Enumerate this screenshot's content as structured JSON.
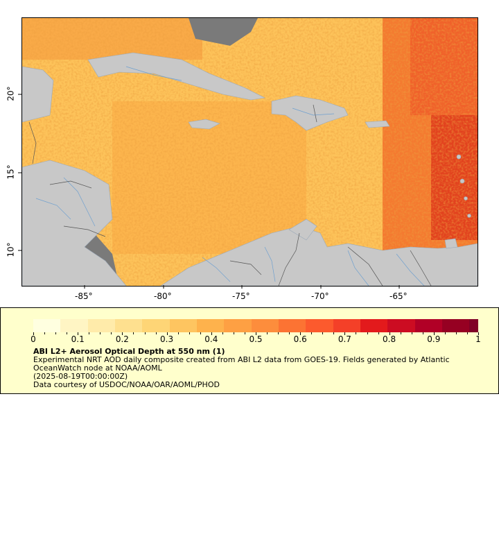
{
  "map": {
    "lon_ticks": [
      "-85°",
      "-80°",
      "-75°",
      "-70°",
      "-65°"
    ],
    "lat_ticks": [
      "20°",
      "15°",
      "10°"
    ],
    "colors": {
      "no_data": "#7a7a7a",
      "land": "#c8c8c8",
      "rivers": "#6fa0cf",
      "borders": "#555555"
    }
  },
  "legend": {
    "colorbar_colors": [
      "#ffffe0",
      "#fff5c4",
      "#ffebaa",
      "#fee08f",
      "#fed576",
      "#fec560",
      "#feb24c",
      "#fea043",
      "#fd8d3c",
      "#fc7333",
      "#fc5a2d",
      "#f44028",
      "#e31a1c",
      "#cc0c22",
      "#b10026",
      "#960022",
      "#800026"
    ],
    "tick_labels": [
      "0",
      "0.1",
      "0.2",
      "0.3",
      "0.4",
      "0.5",
      "0.6",
      "0.7",
      "0.8",
      "0.9",
      "1"
    ],
    "title": "ABI L2+ Aerosol Optical Depth at 550 nm (1)",
    "description": "Experimental NRT AOD daily composite created from ABI L2 data from GOES-19. Fields generated by Atlantic OceanWatch node at NOAA/AOML",
    "date": "(2025-08-19T00:00:00Z)",
    "credit": "Data courtesy of USDOC/NOAA/OAR/AOML/PHOD"
  }
}
